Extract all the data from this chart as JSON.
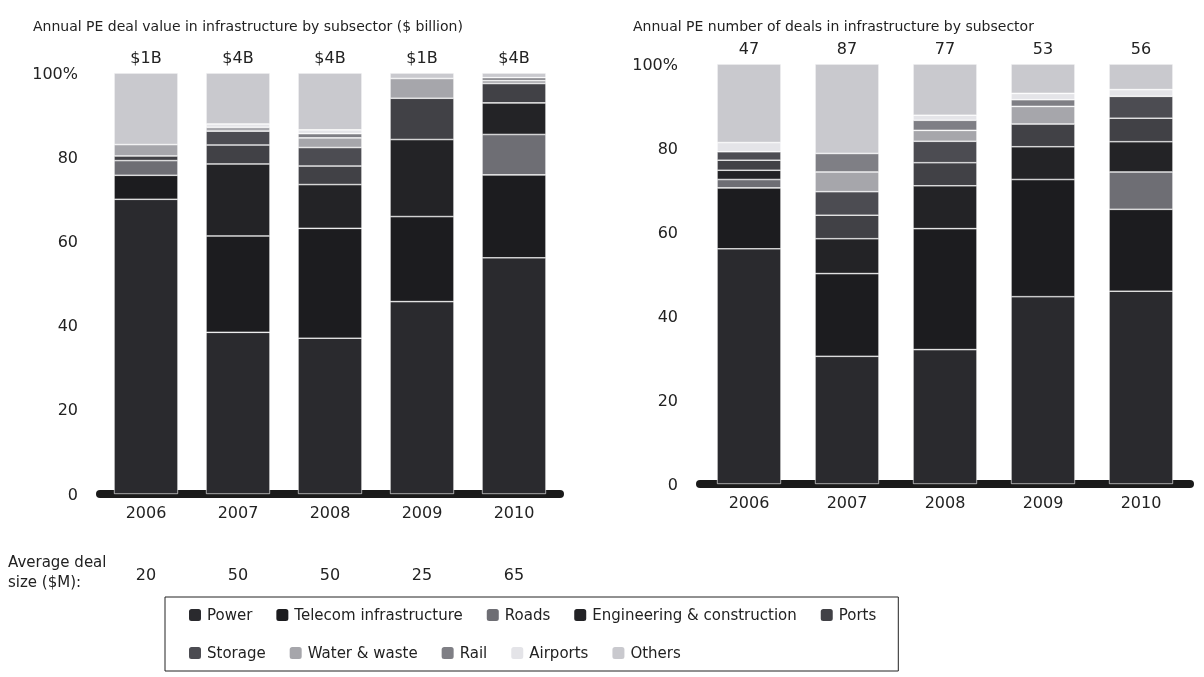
{
  "chart_data": [
    {
      "type": "bar",
      "title": "Annual PE deal value in infrastructure by subsector ($ billion)",
      "stacked": true,
      "categories": [
        "2006",
        "2007",
        "2008",
        "2009",
        "2010"
      ],
      "ylim": [
        0,
        100
      ],
      "yticks": [
        0,
        20,
        40,
        60,
        80,
        {
          "value": 100,
          "label": "100%"
        }
      ],
      "grid": false,
      "legend": "bottom",
      "series": [
        {
          "name": "Power",
          "color": "#2a2a2e",
          "values": [
            70,
            38.4,
            37,
            45.7,
            56.1
          ]
        },
        {
          "name": "Telecom infrastructure",
          "color": "#1c1c1f",
          "values": [
            5.7,
            22.9,
            26.1,
            20.2,
            19.7
          ]
        },
        {
          "name": "Roads",
          "color": "#6e6e74",
          "values": [
            3.5,
            0,
            0,
            0,
            9.6
          ]
        },
        {
          "name": "Engineering & construction",
          "color": "#232326",
          "values": [
            0,
            17.1,
            10.4,
            18.3,
            7.5
          ]
        },
        {
          "name": "Ports",
          "color": "#414146",
          "values": [
            1.1,
            4.5,
            4.4,
            9.8,
            4.6
          ]
        },
        {
          "name": "Storage",
          "color": "#4c4c52",
          "values": [
            0,
            3.3,
            4.4,
            0,
            0
          ]
        },
        {
          "name": "Water & waste",
          "color": "#a6a6ab",
          "values": [
            2.7,
            0.9,
            2.3,
            4.7,
            0.7
          ]
        },
        {
          "name": "Rail",
          "color": "#7f7f85",
          "values": [
            0,
            0,
            1,
            0,
            0.7
          ]
        },
        {
          "name": "Airports",
          "color": "#e4e4e8",
          "values": [
            0,
            0.8,
            0.9,
            0,
            0
          ]
        },
        {
          "name": "Others",
          "color": "#c9c9ce",
          "values": [
            17,
            12.1,
            13.5,
            1.3,
            1.1
          ]
        }
      ],
      "annotations": [
        {
          "text": "$1B",
          "x": "2006",
          "y": 100
        },
        {
          "text": "$4B",
          "x": "2007",
          "y": 100
        },
        {
          "text": "$4B",
          "x": "2008",
          "y": 100
        },
        {
          "text": "$1B",
          "x": "2009",
          "y": 100
        },
        {
          "text": "$4B",
          "x": "2010",
          "y": 100
        },
        "Average deal size ($M):",
        "20",
        "50",
        "50",
        "25",
        "65"
      ]
    },
    {
      "type": "bar",
      "title": "Annual PE number of deals in infrastructure by subsector",
      "stacked": true,
      "categories": [
        "2006",
        "2007",
        "2008",
        "2009",
        "2010"
      ],
      "ylim": [
        0,
        100
      ],
      "yticks": [
        0,
        20,
        40,
        60,
        80,
        {
          "value": 100,
          "label": "100%"
        }
      ],
      "grid": false,
      "legend": "bottom",
      "annotations": [
        {
          "text": "47",
          "x": "2006",
          "y": 100
        },
        {
          "text": "87",
          "x": "2007",
          "y": 100
        },
        {
          "text": "77",
          "x": "2008",
          "y": 100
        },
        {
          "text": "53",
          "x": "2009",
          "y": 100
        },
        {
          "text": "56",
          "x": "2010",
          "y": 100
        }
      ],
      "series": [
        {
          "name": "Power",
          "color": "#2a2a2e",
          "values": [
            56,
            30.4,
            32,
            44.6,
            45.9
          ]
        },
        {
          "name": "Telecom infrastructure",
          "color": "#1c1c1f",
          "values": [
            14.5,
            19.7,
            28.8,
            27.9,
            19.5
          ]
        },
        {
          "name": "Roads",
          "color": "#6e6e74",
          "values": [
            2,
            0,
            0,
            0,
            8.9
          ]
        },
        {
          "name": "Engineering & construction",
          "color": "#232326",
          "values": [
            2.2,
            8.3,
            10.2,
            7.8,
            7.2
          ]
        },
        {
          "name": "Ports",
          "color": "#414146",
          "values": [
            2.4,
            5.6,
            5.5,
            5.4,
            5.6
          ]
        },
        {
          "name": "Storage",
          "color": "#4c4c52",
          "values": [
            2,
            5.6,
            5.1,
            0,
            5.2
          ]
        },
        {
          "name": "Water & waste",
          "color": "#a6a6ab",
          "values": [
            0,
            4.7,
            2.6,
            4.2,
            0
          ]
        },
        {
          "name": "Rail",
          "color": "#7f7f85",
          "values": [
            0,
            4.4,
            2.4,
            1.6,
            0
          ]
        },
        {
          "name": "Airports",
          "color": "#e4e4e8",
          "values": [
            2.2,
            0,
            1.2,
            1.5,
            1.6
          ]
        },
        {
          "name": "Others",
          "color": "#c9c9ce",
          "values": [
            18.7,
            21.3,
            12.2,
            7,
            6.1
          ]
        }
      ]
    }
  ]
}
